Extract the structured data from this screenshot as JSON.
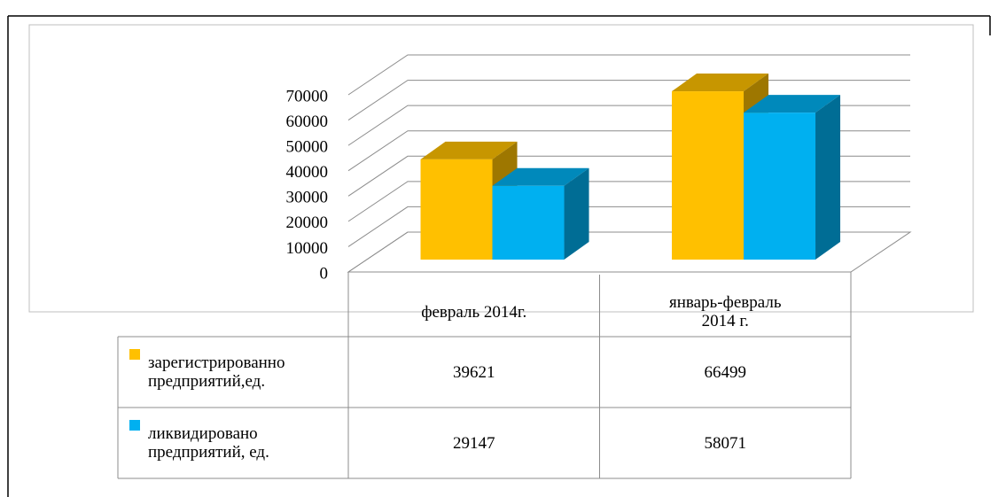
{
  "chart_data": {
    "type": "bar3d",
    "categories": [
      "февраль 2014г.",
      "январь-февраль 2014 г."
    ],
    "series": [
      {
        "name": "зарегистрированно предприятий,ед.",
        "color": "#ffc000",
        "values": [
          39621,
          66499
        ]
      },
      {
        "name": "ликвидировано предприятий, ед.",
        "color": "#00b0f0",
        "values": [
          29147,
          58071
        ]
      }
    ],
    "ylim": [
      0,
      70000
    ],
    "yticks": [
      0,
      10000,
      20000,
      30000,
      40000,
      50000,
      60000,
      70000
    ],
    "grid": true,
    "data_table": true
  }
}
